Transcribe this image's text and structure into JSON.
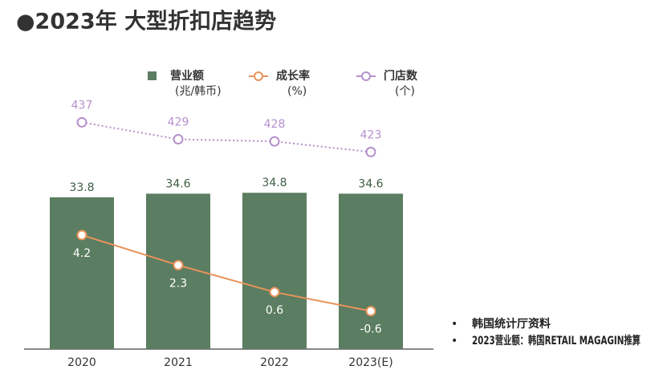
{
  "chart_data": {
    "type": "bar-line",
    "title": "●2023年 大型折扣店趋势",
    "categories": [
      "2020",
      "2021",
      "2022",
      "2023(E)"
    ],
    "series": [
      {
        "name": "营业额",
        "unit": "(兆/韩币)",
        "type": "bar",
        "color": "#5b7d61",
        "values": [
          33.8,
          34.6,
          34.8,
          34.6
        ],
        "axis": "y"
      },
      {
        "name": "成长率",
        "unit": "(%)",
        "type": "line",
        "color": "#e8935a",
        "values": [
          4.2,
          2.3,
          0.6,
          -0.6
        ],
        "axis": "y2"
      },
      {
        "name": "门店数",
        "unit": "(个)",
        "type": "dotted-line",
        "color": "#b590cc",
        "values": [
          437,
          429,
          428,
          423
        ],
        "axis": "y3"
      }
    ],
    "ylim": [
      0,
      67
    ],
    "y2lim": [
      -3,
      16
    ],
    "y3lim": [
      330,
      472
    ],
    "notes": [
      "韩国统计厅资料",
      "2023营业额：韩国RETAIL MAGAGIN推算"
    ]
  }
}
